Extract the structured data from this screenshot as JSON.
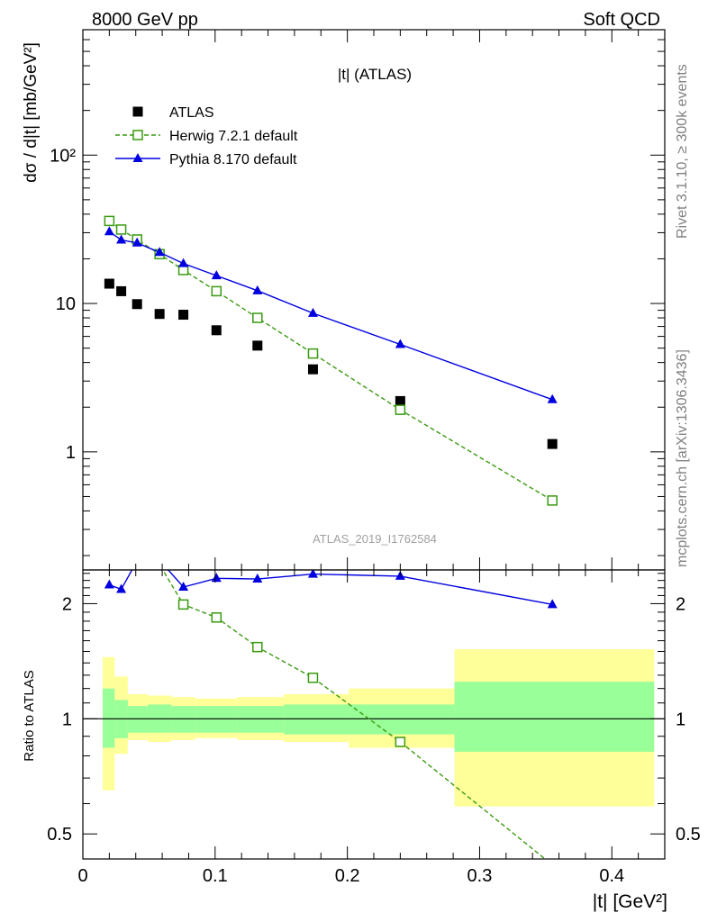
{
  "header": {
    "left": "8000 GeV pp",
    "right": "Soft QCD"
  },
  "side_text": {
    "rivet": "Rivet 3.1.10, ≥ 300k events",
    "mcplots": "mcplots.cern.ch [arXiv:1306.3436]"
  },
  "watermark": "ATLAS_2019_I1762584",
  "chart_data": [
    {
      "type": "scatter",
      "panel": "main",
      "title": "|t| (ATLAS)",
      "ylabel": "dσ / d|t| [mb/GeV²]",
      "yscale": "log",
      "xlim": [
        0,
        0.44
      ],
      "ylim": [
        0.16,
        700
      ],
      "yticks": [
        {
          "value": 1,
          "label": "1"
        },
        {
          "value": 10,
          "label": "10"
        },
        {
          "value": 100,
          "label": "10²"
        }
      ],
      "legend_position": "top-left",
      "series": [
        {
          "name": "ATLAS",
          "marker": "filled-square",
          "color": "#000000",
          "x": [
            0.02,
            0.029,
            0.041,
            0.058,
            0.076,
            0.101,
            0.132,
            0.174,
            0.24,
            0.355
          ],
          "y": [
            13.6,
            12.1,
            9.9,
            8.5,
            8.4,
            6.6,
            5.2,
            3.6,
            2.2,
            1.13
          ]
        },
        {
          "name": "Herwig 7.2.1 default",
          "marker": "open-square",
          "line": "dashed",
          "color": "#3a9a10",
          "x": [
            0.02,
            0.029,
            0.041,
            0.058,
            0.076,
            0.101,
            0.132,
            0.174,
            0.24,
            0.355
          ],
          "y": [
            36,
            31.5,
            27,
            21.5,
            16.8,
            12.1,
            8.0,
            4.6,
            1.92,
            0.47
          ]
        },
        {
          "name": "Pythia 8.170 default",
          "marker": "filled-triangle",
          "line": "solid",
          "color": "#0000e0",
          "x": [
            0.02,
            0.029,
            0.041,
            0.058,
            0.076,
            0.101,
            0.132,
            0.174,
            0.24,
            0.355
          ],
          "y": [
            30.5,
            26.8,
            25.6,
            22.1,
            18.6,
            15.4,
            12.2,
            8.6,
            5.3,
            2.25
          ]
        }
      ]
    },
    {
      "type": "line",
      "panel": "ratio",
      "ylabel": "Ratio to ATLAS",
      "xlabel": "|t| [GeV²]",
      "yscale": "log",
      "xlim": [
        0,
        0.44
      ],
      "ylim": [
        0.43,
        2.45
      ],
      "xticks": [
        {
          "value": 0,
          "label": "0"
        },
        {
          "value": 0.1,
          "label": "0.1"
        },
        {
          "value": 0.2,
          "label": "0.2"
        },
        {
          "value": 0.3,
          "label": "0.3"
        },
        {
          "value": 0.4,
          "label": "0.4"
        }
      ],
      "yticks": [
        {
          "value": 0.5,
          "label": "0.5"
        },
        {
          "value": 1,
          "label": "1"
        },
        {
          "value": 2,
          "label": "2"
        }
      ],
      "bands": {
        "edges": [
          0.015,
          0.024,
          0.034,
          0.049,
          0.067,
          0.085,
          0.117,
          0.152,
          0.201,
          0.281,
          0.432
        ],
        "inner_lo": [
          0.84,
          0.89,
          0.92,
          0.92,
          0.92,
          0.92,
          0.92,
          0.91,
          0.91,
          0.82
        ],
        "inner_hi": [
          1.2,
          1.12,
          1.08,
          1.09,
          1.08,
          1.08,
          1.08,
          1.09,
          1.09,
          1.25
        ],
        "outer_lo": [
          0.65,
          0.81,
          0.88,
          0.87,
          0.88,
          0.89,
          0.88,
          0.87,
          0.84,
          0.59
        ],
        "outer_hi": [
          1.45,
          1.29,
          1.16,
          1.15,
          1.14,
          1.13,
          1.14,
          1.16,
          1.2,
          1.52
        ]
      },
      "series": [
        {
          "name": "Herwig 7.2.1 default",
          "marker": "open-square",
          "line": "dashed",
          "color": "#3a9a10",
          "x": [
            0.02,
            0.029,
            0.041,
            0.058,
            0.076,
            0.101,
            0.132,
            0.174,
            0.24,
            0.355
          ],
          "y": [
            2.65,
            2.6,
            2.73,
            2.53,
            1.99,
            1.84,
            1.54,
            1.28,
            0.87,
            0.415
          ]
        },
        {
          "name": "Pythia 8.170 default",
          "marker": "filled-triangle",
          "line": "solid",
          "color": "#0000e0",
          "x": [
            0.02,
            0.029,
            0.041,
            0.058,
            0.076,
            0.101,
            0.132,
            0.174,
            0.24,
            0.355
          ],
          "y": [
            2.24,
            2.18,
            2.59,
            2.6,
            2.21,
            2.33,
            2.32,
            2.39,
            2.36,
            1.99
          ]
        }
      ]
    }
  ]
}
